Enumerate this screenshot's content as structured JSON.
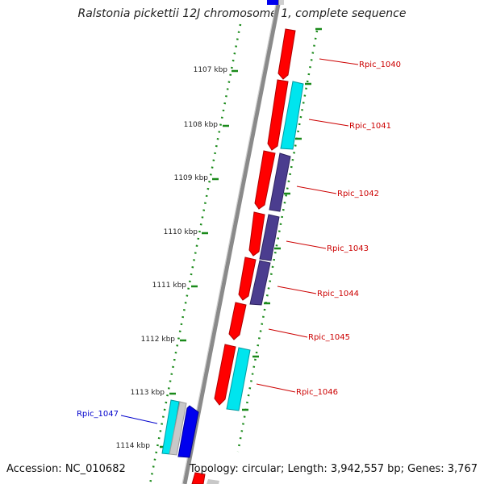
{
  "title": "Ralstonia pickettii 12J chromosome 1, complete sequence",
  "accession": "Accession: NC_010682",
  "summary": "Topology: circular; Length: 3,942,557 bp; Genes: 3,767",
  "kbp_ticks": [
    "1107 kbp",
    "1108 kbp",
    "1109 kbp",
    "1110 kbp",
    "1111 kbp",
    "1112 kbp",
    "1113 kbp",
    "1114 kbp"
  ],
  "genes": [
    {
      "label": "Rpic_1040",
      "color": "#cc0000"
    },
    {
      "label": "Rpic_1041",
      "color": "#cc0000"
    },
    {
      "label": "Rpic_1042",
      "color": "#cc0000"
    },
    {
      "label": "Rpic_1043",
      "color": "#cc0000"
    },
    {
      "label": "Rpic_1044",
      "color": "#cc0000"
    },
    {
      "label": "Rpic_1045",
      "color": "#cc0000"
    },
    {
      "label": "Rpic_1046",
      "color": "#cc0000"
    },
    {
      "label": "Rpic_1047",
      "color": "#0000cc"
    }
  ],
  "colors": {
    "forward_cds": "#ff0000",
    "reverse_cyan": "#00e5ee",
    "reverse_purple": "#4b3d8f",
    "reverse_blue": "#0000ee",
    "backbone": "#888888",
    "ticks": "#1a8a1a"
  }
}
